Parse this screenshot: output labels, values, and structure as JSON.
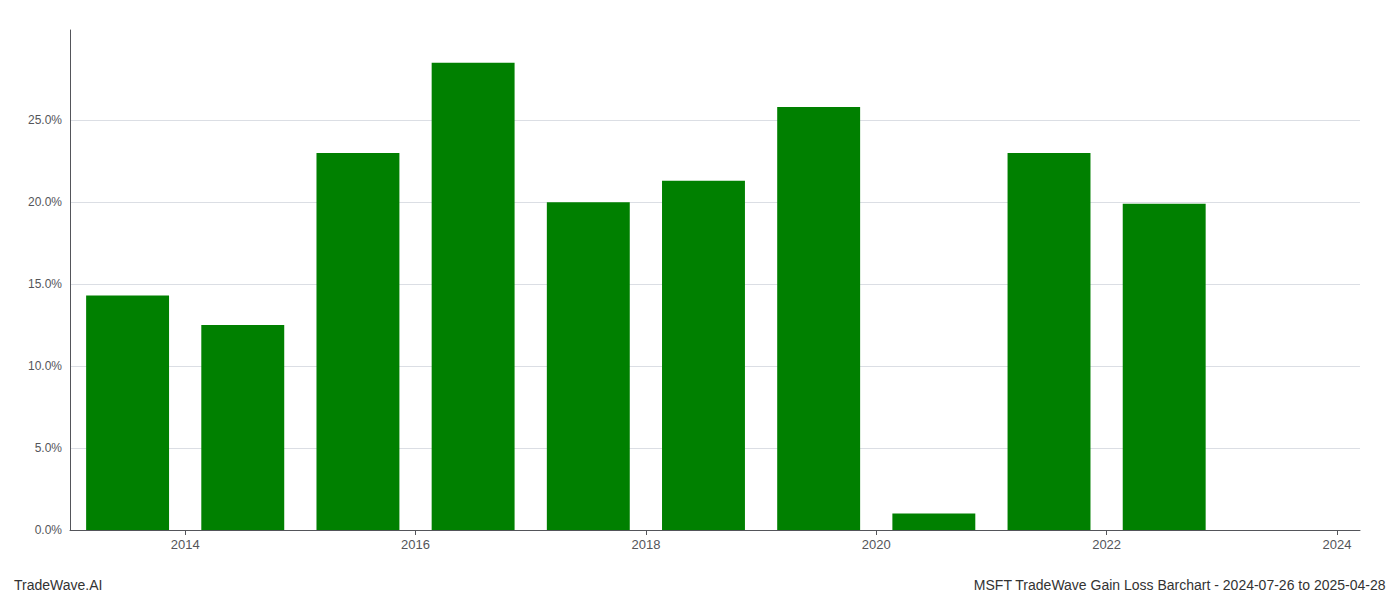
{
  "chart_data": {
    "type": "bar",
    "x": [
      2013.5,
      2014.5,
      2015.5,
      2016.5,
      2017.5,
      2018.5,
      2019.5,
      2020.5,
      2021.5,
      2022.5,
      2023.5
    ],
    "values": [
      0.143,
      0.125,
      0.23,
      0.285,
      0.2,
      0.213,
      0.258,
      0.01,
      0.23,
      0.199,
      0.0
    ],
    "color": "#008000",
    "xlim": [
      2013.0,
      2024.2
    ],
    "xticks": [
      2014,
      2016,
      2018,
      2020,
      2022,
      2024
    ],
    "ylim": [
      0,
      0.305
    ],
    "yticks": [
      {
        "value": 0.0,
        "label": "0.0%"
      },
      {
        "value": 0.05,
        "label": "5.0%"
      },
      {
        "value": 0.1,
        "label": "10.0%"
      },
      {
        "value": 0.15,
        "label": "15.0%"
      },
      {
        "value": 0.2,
        "label": "20.0%"
      },
      {
        "value": 0.25,
        "label": "25.0%"
      }
    ],
    "grid": true,
    "annotations": [
      "TradeWave.AI",
      "MSFT TradeWave Gain Loss Barchart - 2024-07-26 to 2025-04-28"
    ]
  }
}
